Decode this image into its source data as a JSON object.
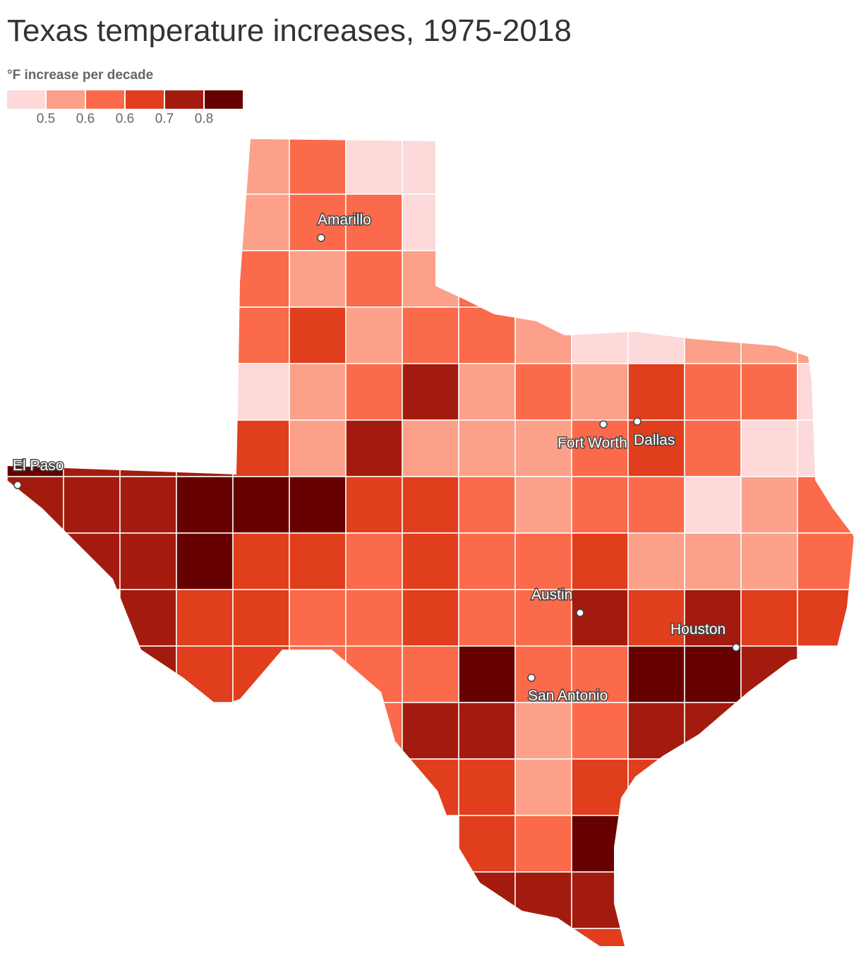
{
  "map": {
    "title": "Texas temperature increases, 1975-2018",
    "legend_title": "°F increase per decade",
    "legend_colors": [
      "#fdd9d9",
      "#fca08a",
      "#fb6a4a",
      "#e03e1d",
      "#a31b0e",
      "#670000"
    ],
    "legend_ticks": [
      0.5,
      {
        "value": 0.58,
        "label": "0.6"
      },
      {
        "value": 0.64,
        "label": "0.6"
      },
      0.7,
      0.8
    ],
    "cities": [
      "Amarillo",
      "El Paso",
      "Fort Worth",
      "Dallas",
      "Austin",
      "Houston",
      "San Antonio"
    ],
    "grid": [
      [
        null,
        null,
        null,
        null,
        0.55,
        0.62,
        0.45,
        0.45,
        null,
        null,
        null,
        null,
        null,
        null,
        null
      ],
      [
        null,
        null,
        null,
        null,
        0.55,
        0.62,
        0.62,
        0.45,
        null,
        null,
        null,
        null,
        null,
        null,
        null
      ],
      [
        null,
        null,
        null,
        null,
        0.62,
        0.55,
        0.62,
        0.55,
        0.62,
        null,
        null,
        null,
        null,
        null,
        null
      ],
      [
        null,
        null,
        null,
        null,
        0.62,
        0.67,
        0.55,
        0.62,
        0.62,
        0.55,
        0.45,
        0.45,
        0.55,
        0.55,
        0.55
      ],
      [
        null,
        null,
        null,
        null,
        0.45,
        0.55,
        0.62,
        0.75,
        0.55,
        0.62,
        0.55,
        0.67,
        0.62,
        0.62,
        0.45
      ],
      [
        0.85,
        0.75,
        0.75,
        0.75,
        0.67,
        0.55,
        0.75,
        0.55,
        0.55,
        0.55,
        0.62,
        0.67,
        0.62,
        0.45,
        0.45
      ],
      [
        0.75,
        0.75,
        0.75,
        0.85,
        0.85,
        0.85,
        0.67,
        0.67,
        0.62,
        0.55,
        0.62,
        0.62,
        0.45,
        0.55,
        0.62
      ],
      [
        null,
        0.75,
        0.75,
        0.85,
        0.67,
        0.67,
        0.62,
        0.67,
        0.62,
        0.62,
        0.67,
        0.55,
        0.55,
        0.55,
        0.62
      ],
      [
        null,
        null,
        0.75,
        0.67,
        0.67,
        0.62,
        0.62,
        0.67,
        0.62,
        0.62,
        0.75,
        0.67,
        0.75,
        0.67,
        0.67
      ],
      [
        null,
        null,
        0.75,
        0.67,
        0.67,
        0.62,
        0.62,
        0.62,
        0.85,
        0.62,
        0.62,
        0.85,
        0.85,
        0.75,
        null
      ],
      [
        null,
        null,
        null,
        null,
        null,
        null,
        0.62,
        0.75,
        0.75,
        0.55,
        0.62,
        0.75,
        0.75,
        null,
        null
      ],
      [
        null,
        null,
        null,
        null,
        null,
        null,
        null,
        0.67,
        0.67,
        0.55,
        0.67,
        0.67,
        null,
        null,
        null
      ],
      [
        null,
        null,
        null,
        null,
        null,
        null,
        null,
        null,
        0.67,
        0.62,
        0.85,
        null,
        null,
        null,
        null
      ],
      [
        null,
        null,
        null,
        null,
        null,
        null,
        null,
        null,
        0.75,
        0.75,
        0.75,
        null,
        null,
        null,
        null
      ],
      [
        null,
        null,
        null,
        null,
        null,
        null,
        null,
        null,
        null,
        0.67,
        0.67,
        null,
        null,
        null,
        null
      ]
    ]
  }
}
